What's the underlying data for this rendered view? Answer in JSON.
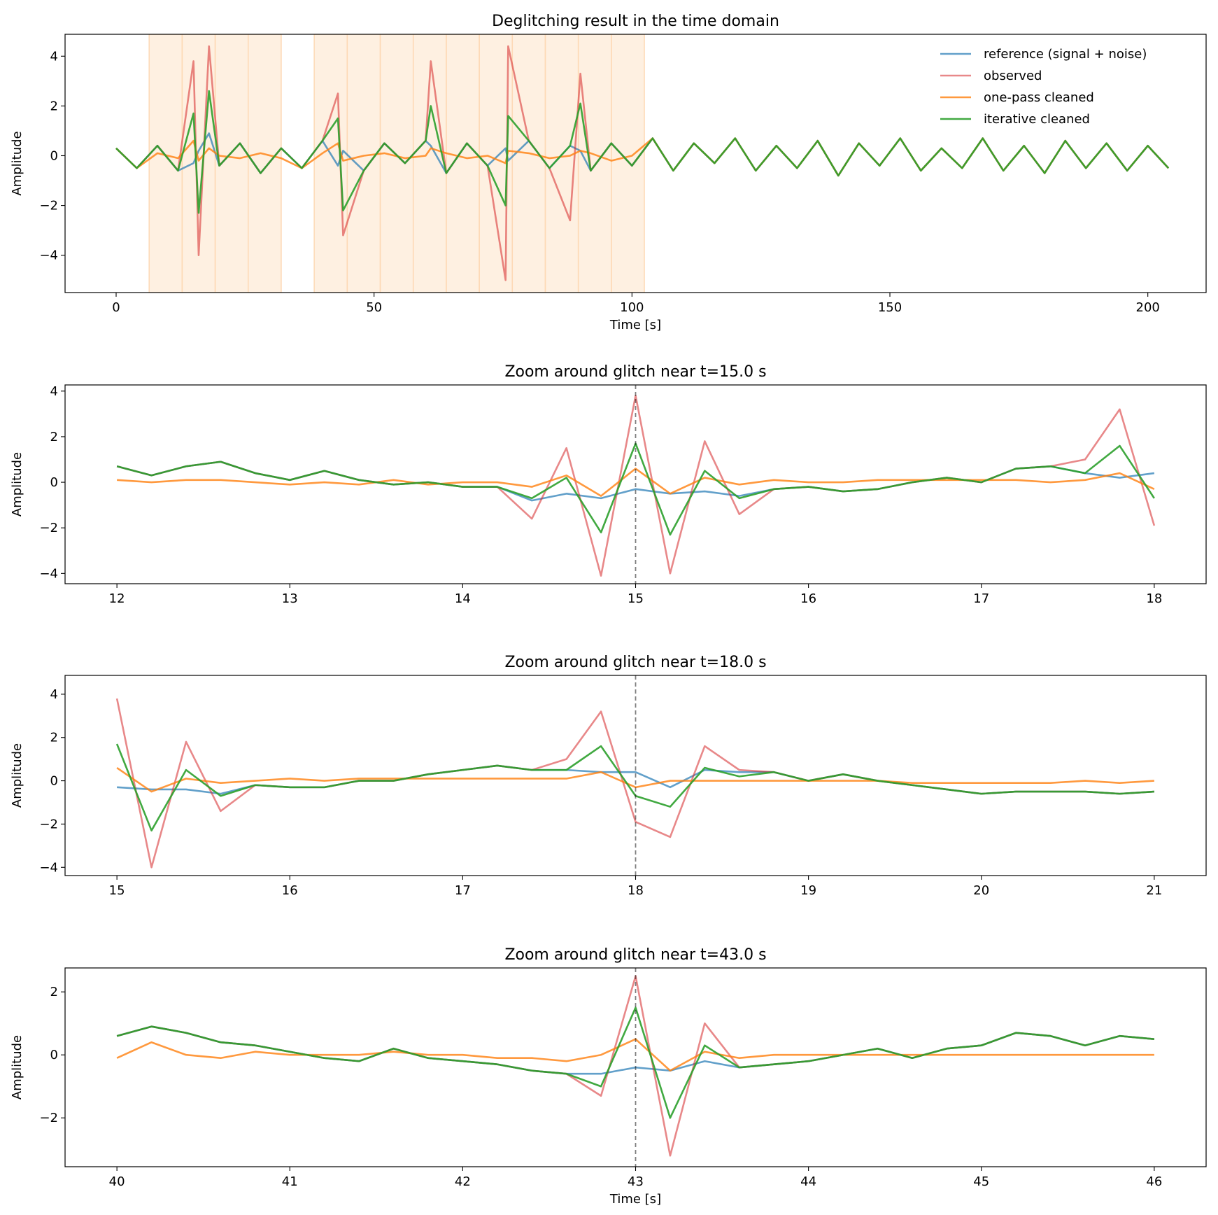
{
  "chart_data": [
    {
      "type": "line",
      "title": "Deglitching result in the time domain",
      "xlabel": "Time [s]",
      "ylabel": "Amplitude",
      "x": [
        0,
        4,
        8,
        12,
        15,
        16,
        18,
        20,
        24,
        28,
        32,
        36,
        40,
        43,
        44,
        48,
        52,
        56,
        60,
        61,
        64,
        68,
        72,
        75.5,
        76,
        80,
        84,
        88,
        90,
        92,
        96,
        100,
        104,
        108,
        112,
        116,
        120,
        124,
        128,
        132,
        136,
        140,
        144,
        148,
        152,
        156,
        160,
        164,
        168,
        172,
        176,
        180,
        184,
        188,
        192,
        196,
        200,
        204
      ],
      "series": [
        {
          "name": "reference (signal + noise)",
          "color": "#1f77b4",
          "alpha": 0.7,
          "values": [
            0.3,
            -0.5,
            0.4,
            -0.6,
            -0.3,
            0.2,
            0.9,
            -0.4,
            0.5,
            -0.7,
            0.3,
            -0.5,
            0.6,
            -0.4,
            0.2,
            -0.6,
            0.5,
            -0.3,
            0.6,
            0.4,
            -0.7,
            0.5,
            -0.4,
            0.3,
            -0.2,
            0.6,
            -0.5,
            0.4,
            0.2,
            -0.6,
            0.5,
            -0.4,
            0.7,
            -0.6,
            0.5,
            -0.3,
            0.7,
            -0.6,
            0.4,
            -0.5,
            0.6,
            -0.8,
            0.5,
            -0.4,
            0.7,
            -0.6,
            0.3,
            -0.5,
            0.7,
            -0.6,
            0.4,
            -0.7,
            0.6,
            -0.5,
            0.5,
            -0.6,
            0.4,
            -0.5
          ]
        },
        {
          "name": "observed",
          "color": "#d62728",
          "alpha": 0.55,
          "values": [
            0.3,
            -0.5,
            0.4,
            -0.6,
            3.8,
            -4.0,
            4.4,
            -0.4,
            0.5,
            -0.7,
            0.3,
            -0.5,
            0.6,
            2.5,
            -3.2,
            -0.6,
            0.5,
            -0.3,
            0.6,
            3.8,
            -0.7,
            0.5,
            -0.4,
            -5.0,
            4.4,
            0.6,
            -0.5,
            -2.6,
            3.3,
            -0.6,
            0.5,
            -0.4,
            0.7,
            -0.6,
            0.5,
            -0.3,
            0.7,
            -0.6,
            0.4,
            -0.5,
            0.6,
            -0.8,
            0.5,
            -0.4,
            0.7,
            -0.6,
            0.3,
            -0.5,
            0.7,
            -0.6,
            0.4,
            -0.7,
            0.6,
            -0.5,
            0.5,
            -0.6,
            0.4,
            -0.5
          ]
        },
        {
          "name": "one-pass cleaned",
          "color": "#ff7f0e",
          "alpha": 0.8,
          "values": [
            0.3,
            -0.5,
            0.1,
            -0.1,
            0.6,
            -0.2,
            0.3,
            0.0,
            -0.1,
            0.1,
            -0.1,
            -0.5,
            0.1,
            0.5,
            -0.2,
            0.0,
            0.1,
            -0.1,
            0.0,
            0.3,
            0.1,
            -0.1,
            0.0,
            -0.3,
            0.2,
            0.1,
            -0.1,
            0.0,
            0.2,
            0.1,
            -0.2,
            0.0,
            0.7,
            -0.6,
            0.5,
            -0.3,
            0.7,
            -0.6,
            0.4,
            -0.5,
            0.6,
            -0.8,
            0.5,
            -0.4,
            0.7,
            -0.6,
            0.3,
            -0.5,
            0.7,
            -0.6,
            0.4,
            -0.7,
            0.6,
            -0.5,
            0.5,
            -0.6,
            0.4,
            -0.5
          ]
        },
        {
          "name": "iterative cleaned",
          "color": "#2ca02c",
          "alpha": 0.9,
          "values": [
            0.3,
            -0.5,
            0.4,
            -0.6,
            1.7,
            -2.3,
            2.6,
            -0.4,
            0.5,
            -0.7,
            0.3,
            -0.5,
            0.6,
            1.5,
            -2.2,
            -0.6,
            0.5,
            -0.3,
            0.6,
            2.0,
            -0.7,
            0.5,
            -0.4,
            -2.0,
            1.6,
            0.6,
            -0.5,
            0.4,
            2.1,
            -0.6,
            0.5,
            -0.4,
            0.7,
            -0.6,
            0.5,
            -0.3,
            0.7,
            -0.6,
            0.4,
            -0.5,
            0.6,
            -0.8,
            0.5,
            -0.4,
            0.7,
            -0.6,
            0.3,
            -0.5,
            0.7,
            -0.6,
            0.4,
            -0.7,
            0.6,
            -0.5,
            0.5,
            -0.6,
            0.4,
            -0.5
          ]
        }
      ],
      "spans": [
        [
          6.4,
          12.8
        ],
        [
          12.8,
          19.2
        ],
        [
          19.2,
          25.6
        ],
        [
          25.6,
          32
        ],
        [
          38.4,
          44.8
        ],
        [
          44.8,
          51.2
        ],
        [
          51.2,
          57.6
        ],
        [
          57.6,
          64
        ],
        [
          64,
          70.4
        ],
        [
          70.4,
          76.8
        ],
        [
          76.8,
          83.2
        ],
        [
          83.2,
          89.6
        ],
        [
          89.6,
          96
        ],
        [
          96,
          102.4
        ]
      ],
      "span_color": "#fdd9b5",
      "xlim": [
        -9.9,
        211.3
      ],
      "xticks": [
        0,
        50,
        100,
        150,
        200
      ],
      "ylim": [
        -5.5,
        4.88
      ],
      "yticks": [
        -4,
        -2,
        0,
        2,
        4
      ],
      "legend": "upper right"
    },
    {
      "type": "line",
      "title": "Zoom around glitch near t=15.0 s",
      "ylabel": "Amplitude",
      "x": [
        12,
        12.2,
        12.4,
        12.6,
        12.8,
        13,
        13.2,
        13.4,
        13.6,
        13.8,
        14,
        14.2,
        14.4,
        14.6,
        14.8,
        15,
        15.2,
        15.4,
        15.6,
        15.8,
        16,
        16.2,
        16.4,
        16.6,
        16.8,
        17,
        17.2,
        17.4,
        17.6,
        17.8,
        18
      ],
      "series": [
        {
          "name": "reference (signal + noise)",
          "color": "#1f77b4",
          "alpha": 0.7,
          "values": [
            0.7,
            0.3,
            0.7,
            0.9,
            0.4,
            0.1,
            0.5,
            0.1,
            -0.1,
            0.0,
            -0.2,
            -0.2,
            -0.8,
            -0.5,
            -0.7,
            -0.3,
            -0.5,
            -0.4,
            -0.6,
            -0.3,
            -0.2,
            -0.4,
            -0.3,
            0.0,
            0.2,
            0.0,
            0.6,
            0.7,
            0.4,
            0.2,
            0.4
          ]
        },
        {
          "name": "observed",
          "color": "#d62728",
          "alpha": 0.55,
          "values": [
            0.7,
            0.3,
            0.7,
            0.9,
            0.4,
            0.1,
            0.5,
            0.1,
            -0.1,
            0.0,
            -0.2,
            -0.2,
            -1.6,
            1.5,
            -4.1,
            3.8,
            -4.0,
            1.8,
            -1.4,
            -0.3,
            -0.2,
            -0.4,
            -0.3,
            0.0,
            0.2,
            0.0,
            0.6,
            0.7,
            1.0,
            3.2,
            -1.9
          ]
        },
        {
          "name": "one-pass cleaned",
          "color": "#ff7f0e",
          "alpha": 0.8,
          "values": [
            0.1,
            0.0,
            0.1,
            0.1,
            0.0,
            -0.1,
            0.0,
            -0.1,
            0.1,
            -0.1,
            0.0,
            0.0,
            -0.2,
            0.3,
            -0.6,
            0.6,
            -0.5,
            0.2,
            -0.1,
            0.1,
            0.0,
            0.0,
            0.1,
            0.1,
            0.1,
            0.1,
            0.1,
            0.0,
            0.1,
            0.4,
            -0.3
          ]
        },
        {
          "name": "iterative cleaned",
          "color": "#2ca02c",
          "alpha": 0.9,
          "values": [
            0.7,
            0.3,
            0.7,
            0.9,
            0.4,
            0.1,
            0.5,
            0.1,
            -0.1,
            0.0,
            -0.2,
            -0.2,
            -0.7,
            0.2,
            -2.2,
            1.7,
            -2.3,
            0.5,
            -0.7,
            -0.3,
            -0.2,
            -0.4,
            -0.3,
            0.0,
            0.2,
            0.0,
            0.6,
            0.7,
            0.4,
            1.6,
            -0.7
          ]
        }
      ],
      "vline": 15,
      "xlim": [
        11.7,
        18.3
      ],
      "xticks": [
        12,
        13,
        14,
        15,
        16,
        17,
        18
      ],
      "ylim": [
        -4.45,
        4.27
      ],
      "yticks": [
        -4,
        -2,
        0,
        2,
        4
      ]
    },
    {
      "type": "line",
      "title": "Zoom around glitch near t=18.0 s",
      "ylabel": "Amplitude",
      "x": [
        15,
        15.2,
        15.4,
        15.6,
        15.8,
        16,
        16.2,
        16.4,
        16.6,
        16.8,
        17,
        17.2,
        17.4,
        17.6,
        17.8,
        18,
        18.2,
        18.4,
        18.6,
        18.8,
        19,
        19.2,
        19.4,
        19.6,
        19.8,
        20,
        20.2,
        20.4,
        20.6,
        20.8,
        21
      ],
      "series": [
        {
          "name": "reference (signal + noise)",
          "color": "#1f77b4",
          "alpha": 0.7,
          "values": [
            -0.3,
            -0.4,
            -0.4,
            -0.6,
            -0.2,
            -0.3,
            -0.3,
            0.0,
            0.0,
            0.3,
            0.5,
            0.7,
            0.5,
            0.5,
            0.4,
            0.4,
            -0.3,
            0.5,
            0.4,
            0.4,
            0.0,
            0.3,
            0.0,
            -0.2,
            -0.4,
            -0.6,
            -0.5,
            -0.5,
            -0.5,
            -0.6,
            -0.5
          ]
        },
        {
          "name": "observed",
          "color": "#d62728",
          "alpha": 0.55,
          "values": [
            3.8,
            -4.0,
            1.8,
            -1.4,
            -0.2,
            -0.3,
            -0.3,
            0.0,
            0.0,
            0.3,
            0.5,
            0.7,
            0.5,
            1.0,
            3.2,
            -1.9,
            -2.6,
            1.6,
            0.5,
            0.4,
            0.0,
            0.3,
            0.0,
            -0.2,
            -0.4,
            -0.6,
            -0.5,
            -0.5,
            -0.5,
            -0.6,
            -0.5
          ]
        },
        {
          "name": "one-pass cleaned",
          "color": "#ff7f0e",
          "alpha": 0.8,
          "values": [
            0.6,
            -0.5,
            0.1,
            -0.1,
            0.0,
            0.1,
            0.0,
            0.1,
            0.1,
            0.1,
            0.1,
            0.1,
            0.1,
            0.1,
            0.4,
            -0.3,
            0.0,
            0.0,
            0.0,
            0.0,
            0.0,
            0.0,
            0.0,
            -0.1,
            -0.1,
            -0.1,
            -0.1,
            -0.1,
            0.0,
            -0.1,
            0.0
          ]
        },
        {
          "name": "iterative cleaned",
          "color": "#2ca02c",
          "alpha": 0.9,
          "values": [
            1.7,
            -2.3,
            0.5,
            -0.7,
            -0.2,
            -0.3,
            -0.3,
            0.0,
            0.0,
            0.3,
            0.5,
            0.7,
            0.5,
            0.5,
            1.6,
            -0.7,
            -1.2,
            0.6,
            0.2,
            0.4,
            0.0,
            0.3,
            0.0,
            -0.2,
            -0.4,
            -0.6,
            -0.5,
            -0.5,
            -0.5,
            -0.6,
            -0.5
          ]
        }
      ],
      "vline": 18,
      "xlim": [
        14.7,
        21.3
      ],
      "xticks": [
        15,
        16,
        17,
        18,
        19,
        20,
        21
      ],
      "ylim": [
        -4.38,
        4.87
      ],
      "yticks": [
        -4,
        -2,
        0,
        2,
        4
      ]
    },
    {
      "type": "line",
      "title": "Zoom around glitch near t=43.0 s",
      "xlabel": "Time [s]",
      "ylabel": "Amplitude",
      "x": [
        40,
        40.2,
        40.4,
        40.6,
        40.8,
        41,
        41.2,
        41.4,
        41.6,
        41.8,
        42,
        42.2,
        42.4,
        42.6,
        42.8,
        43,
        43.2,
        43.4,
        43.6,
        43.8,
        44,
        44.2,
        44.4,
        44.6,
        44.8,
        45,
        45.2,
        45.4,
        45.6,
        45.8,
        46
      ],
      "series": [
        {
          "name": "reference (signal + noise)",
          "color": "#1f77b4",
          "alpha": 0.7,
          "values": [
            0.6,
            0.9,
            0.7,
            0.4,
            0.3,
            0.1,
            -0.1,
            -0.2,
            0.2,
            -0.1,
            -0.2,
            -0.3,
            -0.5,
            -0.6,
            -0.6,
            -0.4,
            -0.5,
            -0.2,
            -0.4,
            -0.3,
            -0.2,
            0.0,
            0.2,
            -0.1,
            0.2,
            0.3,
            0.7,
            0.6,
            0.3,
            0.6,
            0.5
          ]
        },
        {
          "name": "observed",
          "color": "#d62728",
          "alpha": 0.55,
          "values": [
            0.6,
            0.9,
            0.7,
            0.4,
            0.3,
            0.1,
            -0.1,
            -0.2,
            0.2,
            -0.1,
            -0.2,
            -0.3,
            -0.5,
            -0.6,
            -1.3,
            2.5,
            -3.2,
            1.0,
            -0.4,
            -0.3,
            -0.2,
            0.0,
            0.2,
            -0.1,
            0.2,
            0.3,
            0.7,
            0.6,
            0.3,
            0.6,
            0.5
          ]
        },
        {
          "name": "one-pass cleaned",
          "color": "#ff7f0e",
          "alpha": 0.8,
          "values": [
            -0.1,
            0.4,
            0.0,
            -0.1,
            0.1,
            0.0,
            0.0,
            0.0,
            0.1,
            0.0,
            0.0,
            -0.1,
            -0.1,
            -0.2,
            0.0,
            0.5,
            -0.5,
            0.1,
            -0.1,
            0.0,
            0.0,
            0.0,
            0.0,
            0.0,
            0.0,
            0.0,
            0.0,
            0.0,
            0.0,
            0.0,
            0.0
          ]
        },
        {
          "name": "iterative cleaned",
          "color": "#2ca02c",
          "alpha": 0.9,
          "values": [
            0.6,
            0.9,
            0.7,
            0.4,
            0.3,
            0.1,
            -0.1,
            -0.2,
            0.2,
            -0.1,
            -0.2,
            -0.3,
            -0.5,
            -0.6,
            -1.0,
            1.5,
            -2.0,
            0.3,
            -0.4,
            -0.3,
            -0.2,
            0.0,
            0.2,
            -0.1,
            0.2,
            0.3,
            0.7,
            0.6,
            0.3,
            0.6,
            0.5
          ]
        }
      ],
      "vline": 43,
      "xlim": [
        39.7,
        46.3
      ],
      "xticks": [
        40,
        41,
        42,
        43,
        44,
        45,
        46
      ],
      "ylim": [
        -3.55,
        2.76
      ],
      "yticks": [
        -2,
        0,
        2
      ]
    }
  ]
}
